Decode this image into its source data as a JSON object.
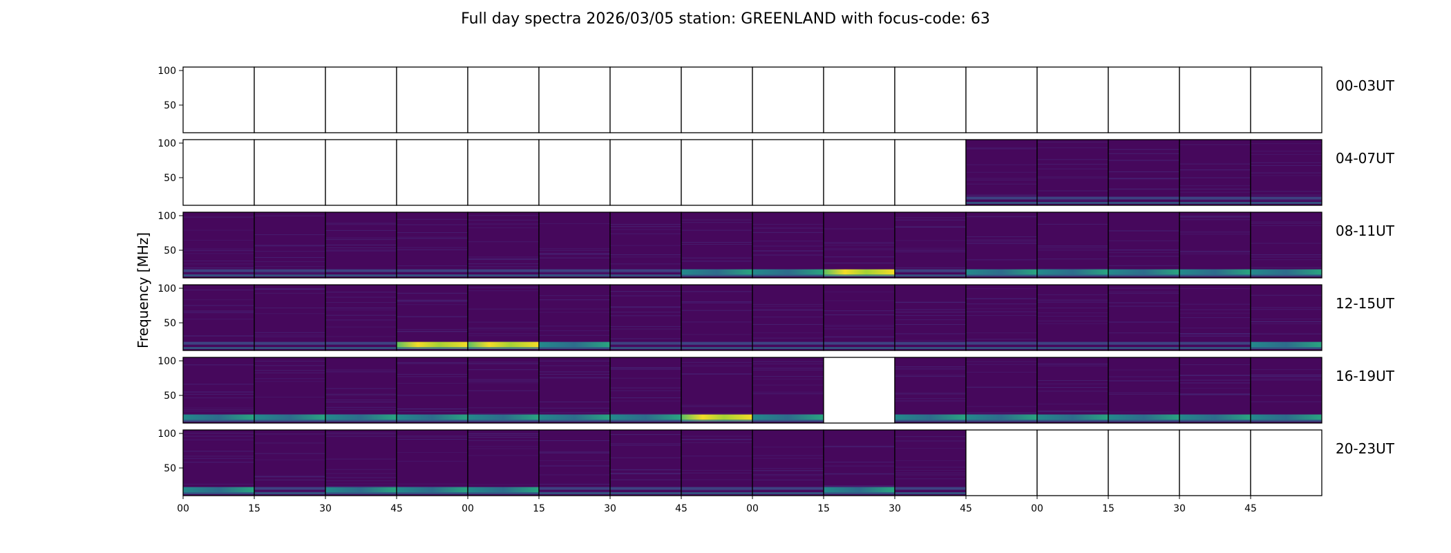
{
  "chart_data": {
    "type": "heatmap",
    "title": "Full day spectra 2026/03/05 station: GREENLAND with focus-code: 63",
    "ylabel": "Frequency [MHz]",
    "xlabel": "",
    "ylim": [
      10,
      105
    ],
    "y_ticks": [
      "100",
      "50"
    ],
    "y_tick_values": [
      100,
      50
    ],
    "x_tick_labels": [
      "00",
      "15",
      "30",
      "45",
      "00",
      "15",
      "30",
      "45",
      "00",
      "15",
      "30",
      "45",
      "00",
      "15",
      "30",
      "45"
    ],
    "colormap": [
      "#440154",
      "#472a7a",
      "#3b518b",
      "#2c718e",
      "#21908d",
      "#27ad81",
      "#5cc863",
      "#aadc32",
      "#fde725"
    ],
    "background_panel_color": "#46085c",
    "rows": [
      {
        "label": "00-03UT",
        "panels": [
          "empty",
          "empty",
          "empty",
          "empty",
          "empty",
          "empty",
          "empty",
          "empty",
          "empty",
          "empty",
          "empty",
          "empty",
          "empty",
          "empty",
          "empty",
          "empty"
        ]
      },
      {
        "label": "04-07UT",
        "panels": [
          "empty",
          "empty",
          "empty",
          "empty",
          "empty",
          "empty",
          "empty",
          "empty",
          "empty",
          "empty",
          "empty",
          "low",
          "low",
          "low",
          "low",
          "low"
        ]
      },
      {
        "label": "08-11UT",
        "panels": [
          "low",
          "low",
          "low",
          "low",
          "low",
          "low",
          "low",
          "mid",
          "mid",
          "high",
          "low",
          "mid",
          "mid",
          "mid",
          "mid",
          "mid"
        ]
      },
      {
        "label": "12-15UT",
        "panels": [
          "low",
          "low",
          "low",
          "high",
          "high",
          "mid",
          "low",
          "low",
          "low",
          "low",
          "low",
          "low",
          "low",
          "low",
          "low",
          "mid"
        ]
      },
      {
        "label": "16-19UT",
        "panels": [
          "mid",
          "mid",
          "mid",
          "mid",
          "mid",
          "mid",
          "mid",
          "high",
          "mid",
          "empty",
          "mid",
          "mid",
          "mid",
          "mid",
          "mid",
          "mid"
        ]
      },
      {
        "label": "20-23UT",
        "panels": [
          "mid",
          "low",
          "mid",
          "mid",
          "mid",
          "low",
          "low",
          "low",
          "low",
          "mid",
          "low",
          "empty",
          "empty",
          "empty",
          "empty",
          "empty"
        ]
      }
    ]
  }
}
